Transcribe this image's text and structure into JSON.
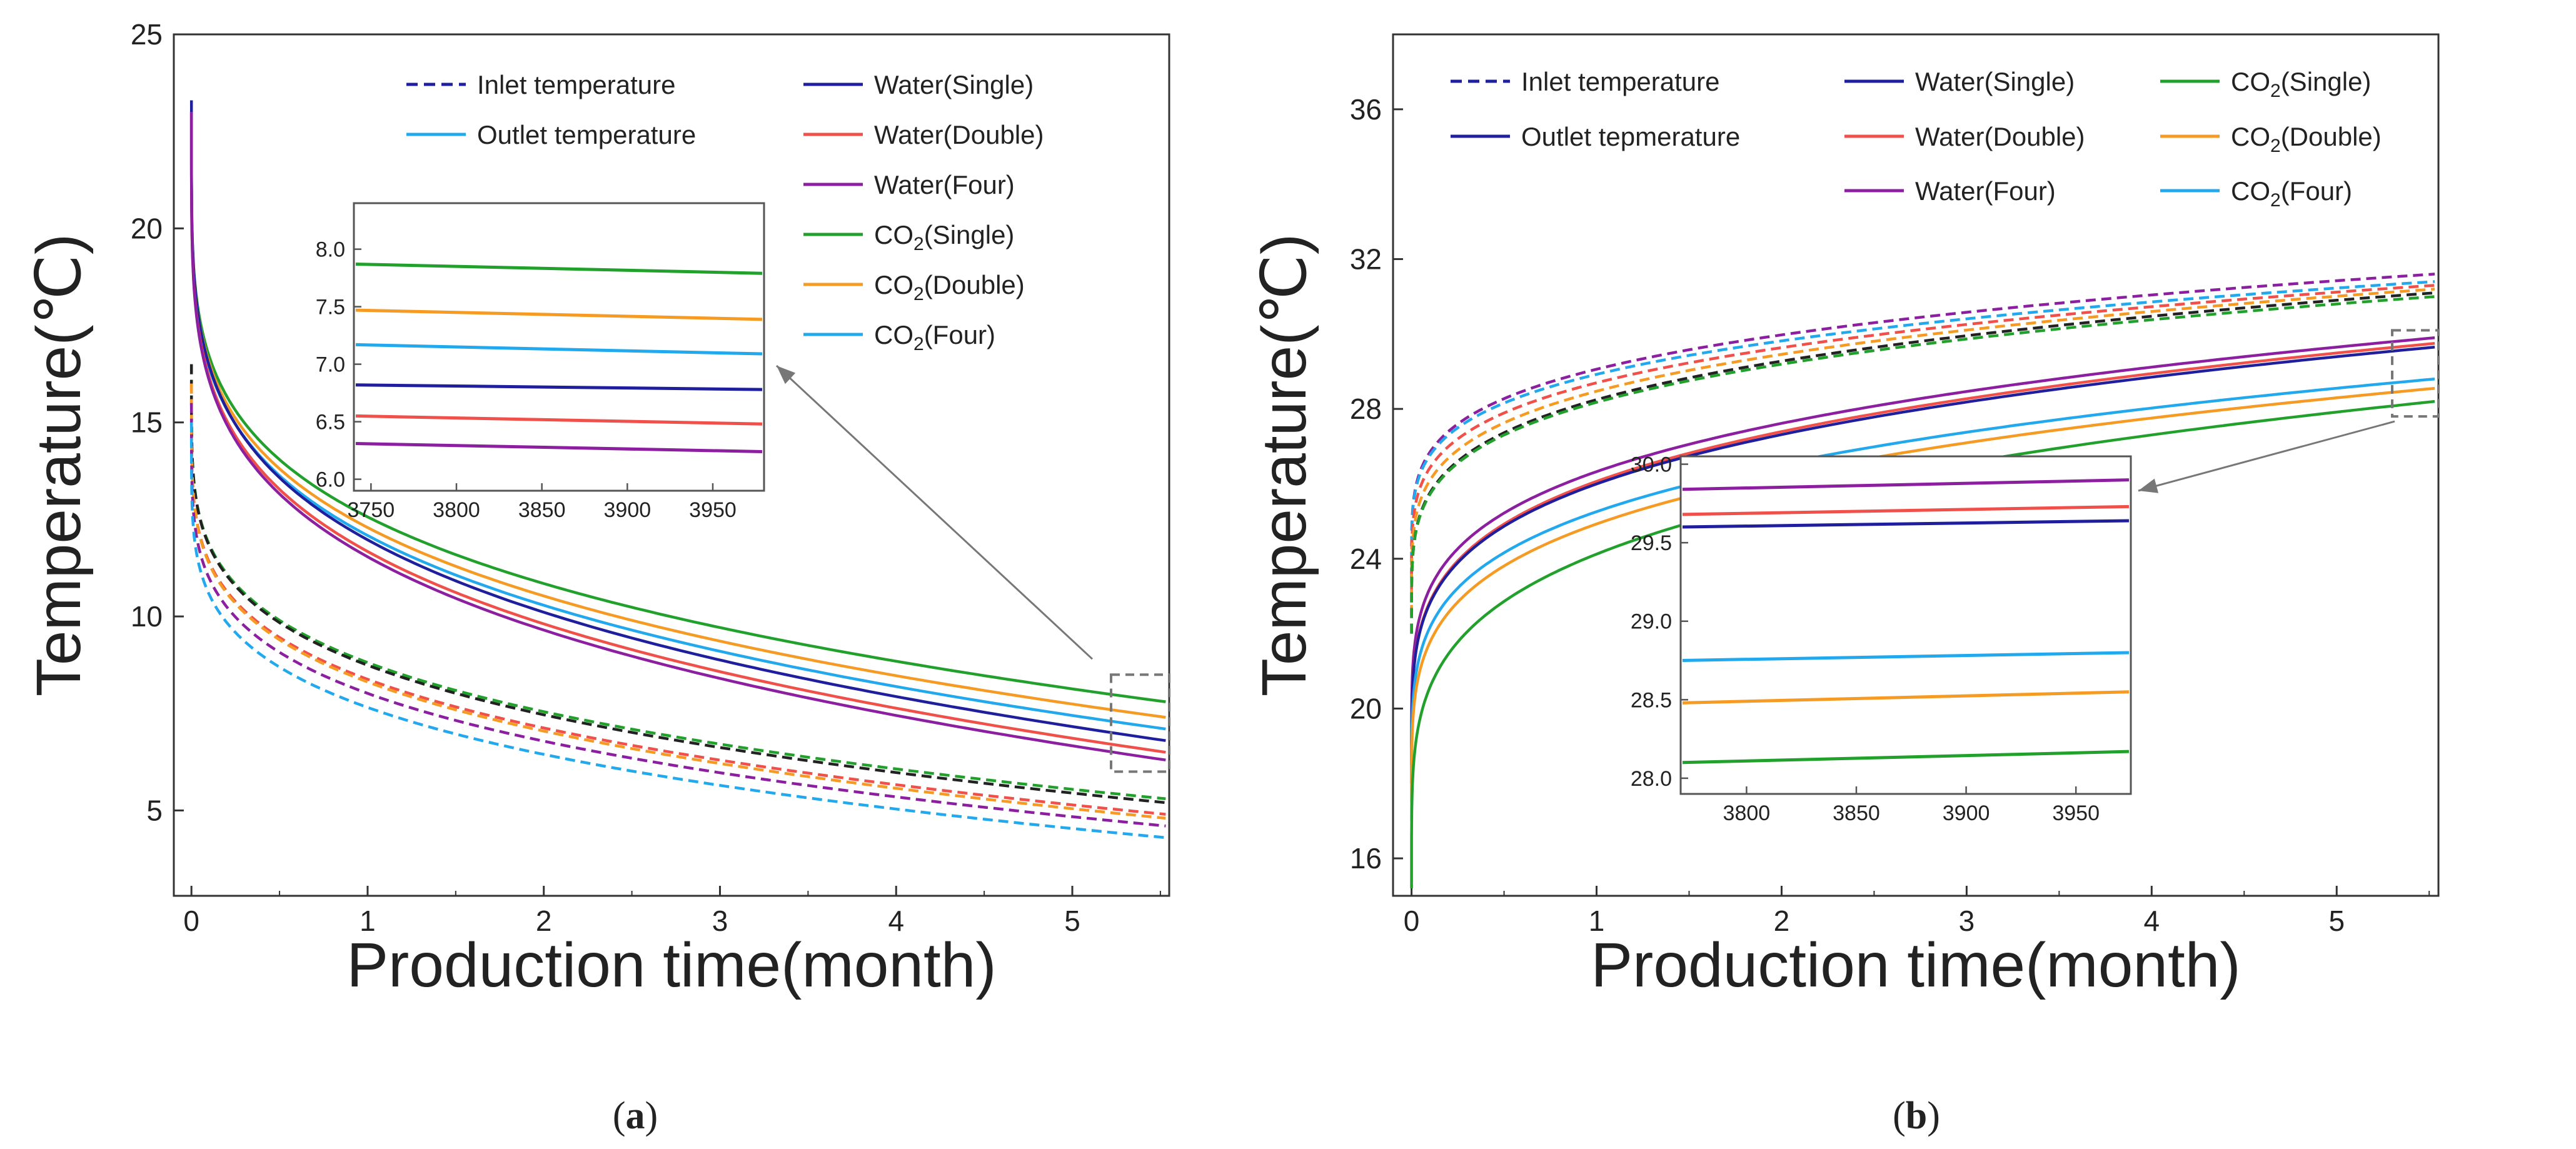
{
  "figure": {
    "panel_a_caption": {
      "open": "(",
      "letter": "a",
      "close": ")"
    },
    "panel_b_caption": {
      "open": "(",
      "letter": "b",
      "close": ")"
    }
  },
  "colors": {
    "water_single": "#1f1f9e",
    "water_double": "#f0504a",
    "water_four": "#8c1fa0",
    "co2_single": "#21a02c",
    "co2_double": "#f59a22",
    "co2_four": "#22a8ec",
    "black": "#222222",
    "gray": "#777777"
  },
  "chart_data": [
    {
      "id": "a",
      "type": "line",
      "xlabel": "Production time(month)",
      "ylabel": "Temperature(℃)",
      "xlim": [
        -0.1,
        5.55
      ],
      "ylim": [
        2.8,
        25
      ],
      "xticks": [
        0,
        1,
        2,
        3,
        4,
        5
      ],
      "yticks": [
        5,
        10,
        15,
        20,
        25
      ],
      "legend": [
        {
          "text": "Inlet temperature",
          "style": "dashed",
          "color_key": "water_single"
        },
        {
          "text": "Outlet temperature",
          "style": "solid",
          "color_key": "co2_four"
        },
        {
          "text": "Water(Single)",
          "style": "solid",
          "color_key": "water_single"
        },
        {
          "text": "Water(Double)",
          "style": "solid",
          "color_key": "water_double"
        },
        {
          "text": "Water(Four)",
          "style": "solid",
          "color_key": "water_four"
        },
        {
          "base": "CO",
          "sub": "2",
          "suffix": "(Single)",
          "style": "solid",
          "color_key": "co2_single"
        },
        {
          "base": "CO",
          "sub": "2",
          "suffix": "(Double)",
          "style": "solid",
          "color_key": "co2_double"
        },
        {
          "base": "CO",
          "sub": "2",
          "suffix": "(Four)",
          "style": "solid",
          "color_key": "co2_four"
        }
      ],
      "series": [
        {
          "name": "CO2(Single) outlet",
          "color_key": "co2_single",
          "style": "solid",
          "start": 23.0,
          "end": 7.8
        },
        {
          "name": "CO2(Double) outlet",
          "color_key": "co2_double",
          "style": "solid",
          "start": 23.0,
          "end": 7.4
        },
        {
          "name": "CO2(Four) outlet",
          "color_key": "co2_four",
          "style": "solid",
          "start": 23.0,
          "end": 7.1
        },
        {
          "name": "Water(Single) outlet",
          "color_key": "water_single",
          "style": "solid",
          "start": 23.3,
          "end": 6.8
        },
        {
          "name": "Water(Double) outlet",
          "color_key": "water_double",
          "style": "solid",
          "start": 23.0,
          "end": 6.5
        },
        {
          "name": "Water(Four) outlet",
          "color_key": "water_four",
          "style": "solid",
          "start": 23.0,
          "end": 6.3
        },
        {
          "name": "CO2(Single) inlet",
          "color_key": "co2_single",
          "style": "dashed",
          "start": 16.5,
          "end": 5.3
        },
        {
          "name": "Water(Single) inlet",
          "color_key": "black",
          "style": "dashed",
          "start": 16.5,
          "end": 5.2
        },
        {
          "name": "Water(Double) inlet",
          "color_key": "water_double",
          "style": "dashed",
          "start": 16.0,
          "end": 4.9
        },
        {
          "name": "CO2(Double) inlet",
          "color_key": "co2_double",
          "style": "dashed",
          "start": 16.0,
          "end": 4.8
        },
        {
          "name": "Water(Four) inlet",
          "color_key": "water_four",
          "style": "dashed",
          "start": 15.5,
          "end": 4.6
        },
        {
          "name": "CO2(Four) inlet",
          "color_key": "co2_four",
          "style": "dashed",
          "start": 15.0,
          "end": 4.3
        }
      ],
      "zoom_box": {
        "x": [
          5.22,
          5.55
        ],
        "y": [
          6.0,
          8.5
        ]
      },
      "inset": {
        "xlim": [
          3740,
          3980
        ],
        "ylim": [
          5.9,
          8.4
        ],
        "xticks": [
          3750,
          3800,
          3850,
          3900,
          3950
        ],
        "yticks": [
          "6.0",
          "6.5",
          "7.0",
          "7.5",
          "8.0"
        ],
        "series": [
          {
            "color_key": "co2_single",
            "y": [
              7.87,
              7.79
            ]
          },
          {
            "color_key": "co2_double",
            "y": [
              7.47,
              7.39
            ]
          },
          {
            "color_key": "co2_four",
            "y": [
              7.17,
              7.09
            ]
          },
          {
            "color_key": "water_single",
            "y": [
              6.82,
              6.78
            ]
          },
          {
            "color_key": "water_double",
            "y": [
              6.55,
              6.48
            ]
          },
          {
            "color_key": "water_four",
            "y": [
              6.31,
              6.24
            ]
          }
        ]
      }
    },
    {
      "id": "b",
      "type": "line",
      "xlabel": "Production time(month)",
      "ylabel": "Temperature(℃)",
      "xlim": [
        -0.1,
        5.55
      ],
      "ylim": [
        15,
        38
      ],
      "xticks": [
        0,
        1,
        2,
        3,
        4,
        5
      ],
      "yticks": [
        16,
        20,
        24,
        28,
        32,
        36
      ],
      "legend": [
        {
          "text": "Inlet temperature",
          "style": "dashed",
          "color_key": "water_single"
        },
        {
          "text": "Outlet tepmerature",
          "style": "solid",
          "color_key": "water_single"
        },
        {
          "text": "Water(Single)",
          "style": "solid",
          "color_key": "water_single"
        },
        {
          "text": "Water(Double)",
          "style": "solid",
          "color_key": "water_double"
        },
        {
          "text": "Water(Four)",
          "style": "solid",
          "color_key": "water_four"
        },
        {
          "base": "CO",
          "sub": "2",
          "suffix": "(Single)",
          "style": "solid",
          "color_key": "co2_single"
        },
        {
          "base": "CO",
          "sub": "2",
          "suffix": "(Double)",
          "style": "solid",
          "color_key": "co2_double"
        },
        {
          "base": "CO",
          "sub": "2",
          "suffix": "(Four)",
          "style": "solid",
          "color_key": "co2_four"
        }
      ],
      "series": [
        {
          "name": "Water(Four) inlet",
          "color_key": "water_four",
          "style": "dashed",
          "start": 23.5,
          "end": 31.6
        },
        {
          "name": "CO2(Four) inlet",
          "color_key": "co2_four",
          "style": "dashed",
          "start": 23.5,
          "end": 31.4
        },
        {
          "name": "Water(Double) inlet",
          "color_key": "water_double",
          "style": "dashed",
          "start": 23.0,
          "end": 31.3
        },
        {
          "name": "CO2(Double) inlet",
          "color_key": "co2_double",
          "style": "dashed",
          "start": 22.5,
          "end": 31.2
        },
        {
          "name": "Water(Single) inlet",
          "color_key": "black",
          "style": "dashed",
          "start": 22.0,
          "end": 31.1
        },
        {
          "name": "CO2(Single) inlet",
          "color_key": "co2_single",
          "style": "dashed",
          "start": 22.0,
          "end": 31.0
        },
        {
          "name": "Water(Four) outlet",
          "color_key": "water_four",
          "style": "solid",
          "start": 18.5,
          "end": 29.9
        },
        {
          "name": "Water(Double) outlet",
          "color_key": "water_double",
          "style": "solid",
          "start": 18.0,
          "end": 29.75
        },
        {
          "name": "Water(Single) outlet",
          "color_key": "water_single",
          "style": "solid",
          "start": 18.0,
          "end": 29.65
        },
        {
          "name": "CO2(Four) outlet",
          "color_key": "co2_four",
          "style": "solid",
          "start": 17.5,
          "end": 28.8
        },
        {
          "name": "CO2(Double) outlet",
          "color_key": "co2_double",
          "style": "solid",
          "start": 17.0,
          "end": 28.55
        },
        {
          "name": "CO2(Single) outlet",
          "color_key": "co2_single",
          "style": "solid",
          "start": 15.2,
          "end": 28.2
        }
      ],
      "zoom_box": {
        "x": [
          5.3,
          5.55
        ],
        "y": [
          27.8,
          30.1
        ]
      },
      "inset": {
        "xlim": [
          3770,
          3975
        ],
        "ylim": [
          27.9,
          30.05
        ],
        "xticks": [
          3800,
          3850,
          3900,
          3950
        ],
        "yticks": [
          "28.0",
          "28.5",
          "29.0",
          "29.5",
          "30.0"
        ],
        "series": [
          {
            "color_key": "water_four",
            "y": [
              29.84,
              29.9
            ]
          },
          {
            "color_key": "water_double",
            "y": [
              29.68,
              29.73
            ]
          },
          {
            "color_key": "water_single",
            "y": [
              29.6,
              29.64
            ]
          },
          {
            "color_key": "co2_four",
            "y": [
              28.75,
              28.8
            ]
          },
          {
            "color_key": "co2_double",
            "y": [
              28.48,
              28.55
            ]
          },
          {
            "color_key": "co2_single",
            "y": [
              28.1,
              28.17
            ]
          }
        ]
      }
    }
  ]
}
